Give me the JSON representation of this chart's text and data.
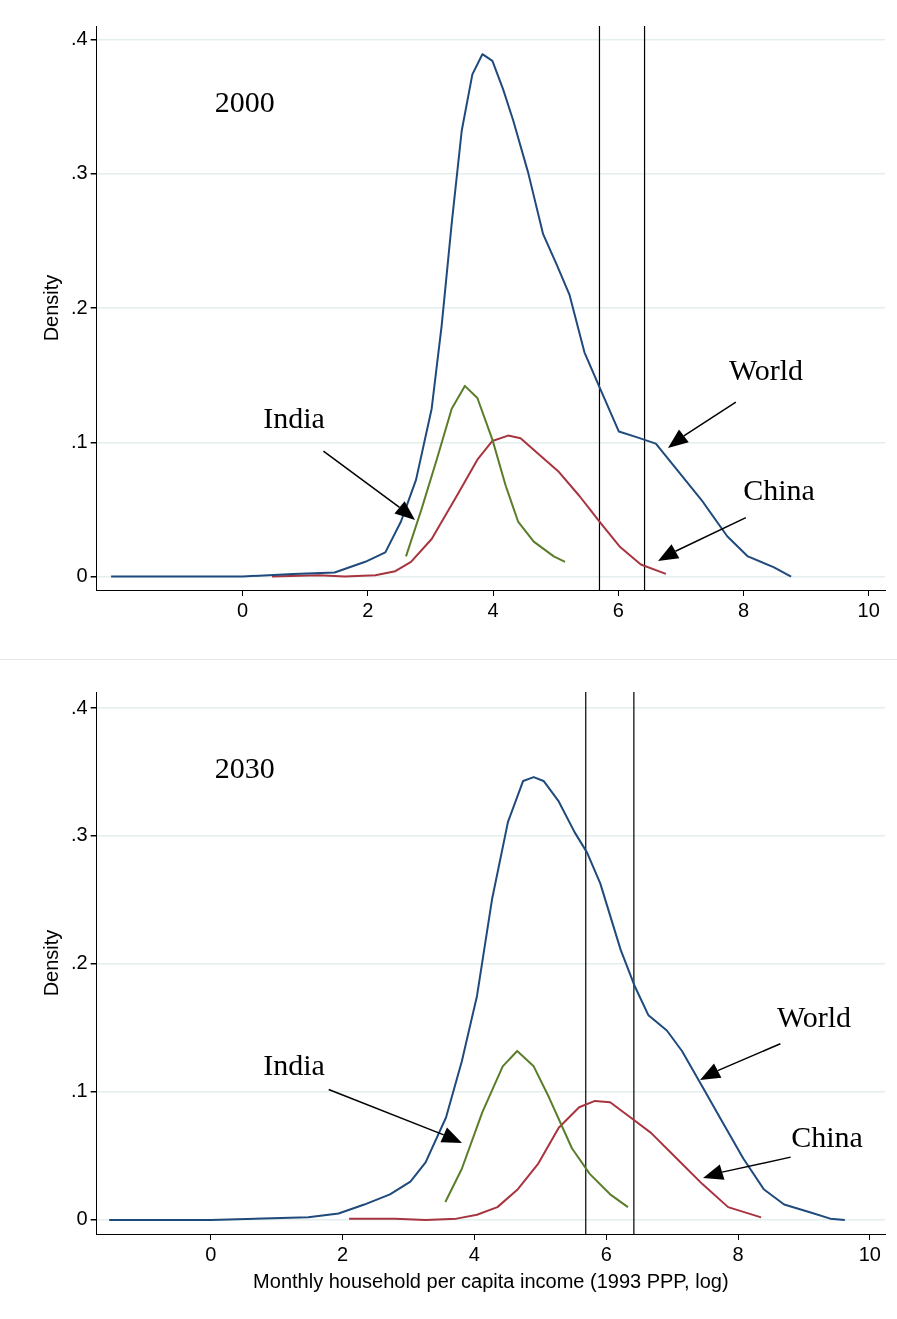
{
  "chart_data": [
    {
      "type": "line",
      "title": "2000",
      "ylabel": "Density",
      "xlim": [
        -2.33,
        10.26
      ],
      "ylim": [
        -0.01,
        0.41
      ],
      "xticks": [
        0,
        2,
        4,
        6,
        8,
        10
      ],
      "yticks": [
        0,
        {
          "value": 0.1,
          "label": ".1"
        },
        {
          "value": 0.2,
          "label": ".2"
        },
        {
          "value": 0.3,
          "label": ".3"
        },
        {
          "value": 0.4,
          "label": ".4"
        }
      ],
      "grid": "y",
      "legend": false,
      "marker": "none",
      "ref_lines": [
        {
          "axis": "x",
          "value": 5.7,
          "color": "#000000"
        },
        {
          "axis": "x",
          "value": 6.42,
          "color": "#000000"
        }
      ],
      "annotations": [
        "India",
        "World",
        "China"
      ],
      "series": [
        {
          "color": "#1f4a7c",
          "x": [
            -2.1,
            0,
            0.81,
            1.47,
            1.96,
            2.28,
            2.53,
            2.77,
            3.02,
            3.18,
            3.34,
            3.5,
            3.67,
            3.83,
            3.99,
            4.16,
            4.32,
            4.56,
            4.8,
            5.01,
            5.22,
            5.46,
            5.7,
            6.01,
            6.28,
            6.6,
            6.93,
            7.33,
            7.74,
            8.07,
            8.48,
            8.76
          ],
          "values": [
            0,
            0,
            0.002,
            0.003,
            0.011,
            0.018,
            0.041,
            0.072,
            0.125,
            0.187,
            0.263,
            0.332,
            0.374,
            0.389,
            0.384,
            0.363,
            0.34,
            0.301,
            0.255,
            0.233,
            0.21,
            0.167,
            0.141,
            0.108,
            0.104,
            0.099,
            0.08,
            0.057,
            0.03,
            0.015,
            0.007,
            0
          ]
        },
        {
          "color": "#5a7d2a",
          "x": [
            2.61,
            2.85,
            3.1,
            3.34,
            3.55,
            3.75,
            3.99,
            4.2,
            4.4,
            4.65,
            4.97,
            5.15
          ],
          "values": [
            0.015,
            0.049,
            0.087,
            0.125,
            0.142,
            0.133,
            0.102,
            0.068,
            0.041,
            0.026,
            0.015,
            0.011
          ]
        },
        {
          "color": "#a8343f",
          "x": [
            0.47,
            1.22,
            1.63,
            2.12,
            2.44,
            2.69,
            3.02,
            3.42,
            3.75,
            3.99,
            4.24,
            4.44,
            4.73,
            5.05,
            5.38,
            5.7,
            6.03,
            6.36,
            6.76
          ],
          "values": [
            0,
            0.001,
            0,
            0.001,
            0.004,
            0.011,
            0.028,
            0.06,
            0.087,
            0.101,
            0.105,
            0.103,
            0.091,
            0.078,
            0.06,
            0.041,
            0.022,
            0.009,
            0.002
          ]
        }
      ]
    },
    {
      "type": "line",
      "title": "2030",
      "xlabel": "Monthly household per capita income (1993 PPP, log)",
      "ylabel": "Density",
      "xlim": [
        -1.73,
        10.23
      ],
      "ylim": [
        -0.011,
        0.4125
      ],
      "xticks": [
        0,
        2,
        4,
        6,
        8,
        10
      ],
      "yticks": [
        0,
        {
          "value": 0.1,
          "label": ".1"
        },
        {
          "value": 0.2,
          "label": ".2"
        },
        {
          "value": 0.3,
          "label": ".3"
        },
        {
          "value": 0.4,
          "label": ".4"
        }
      ],
      "grid": "y",
      "legend": false,
      "marker": "none",
      "ref_lines": [
        {
          "axis": "x",
          "value": 5.69,
          "color": "#000000"
        },
        {
          "axis": "x",
          "value": 6.42,
          "color": "#000000"
        }
      ],
      "annotations": [
        "India",
        "World",
        "China"
      ],
      "series": [
        {
          "color": "#1f4a7c",
          "x": [
            -1.54,
            0,
            1.48,
            1.94,
            2.33,
            2.72,
            3.03,
            3.26,
            3.57,
            3.81,
            4.04,
            4.27,
            4.51,
            4.74,
            4.9,
            5.05,
            5.28,
            5.52,
            5.71,
            5.91,
            6.22,
            6.43,
            6.64,
            6.92,
            7.15,
            7.46,
            7.77,
            8.08,
            8.39,
            8.7,
            9.09,
            9.4,
            9.62
          ],
          "values": [
            0,
            0,
            0.002,
            0.005,
            0.012,
            0.02,
            0.03,
            0.045,
            0.08,
            0.124,
            0.175,
            0.251,
            0.311,
            0.343,
            0.346,
            0.343,
            0.327,
            0.303,
            0.287,
            0.263,
            0.211,
            0.183,
            0.16,
            0.148,
            0.132,
            0.104,
            0.076,
            0.048,
            0.024,
            0.012,
            0.006,
            0.001,
            0
          ]
        },
        {
          "color": "#5a7d2a",
          "x": [
            3.56,
            3.81,
            4.12,
            4.43,
            4.65,
            4.9,
            5.13,
            5.48,
            5.75,
            6.06,
            6.33
          ],
          "values": [
            0.014,
            0.04,
            0.084,
            0.12,
            0.132,
            0.12,
            0.096,
            0.056,
            0.036,
            0.02,
            0.01
          ]
        },
        {
          "color": "#a8343f",
          "x": [
            2.1,
            2.8,
            3.26,
            3.73,
            4.04,
            4.35,
            4.66,
            4.97,
            5.28,
            5.59,
            5.83,
            6.06,
            6.37,
            6.68,
            7.07,
            7.46,
            7.85,
            8.35
          ],
          "values": [
            0.001,
            0.001,
            0,
            0.001,
            0.004,
            0.01,
            0.024,
            0.044,
            0.072,
            0.088,
            0.093,
            0.092,
            0.08,
            0.068,
            0.048,
            0.028,
            0.01,
            0.002
          ]
        }
      ]
    }
  ]
}
